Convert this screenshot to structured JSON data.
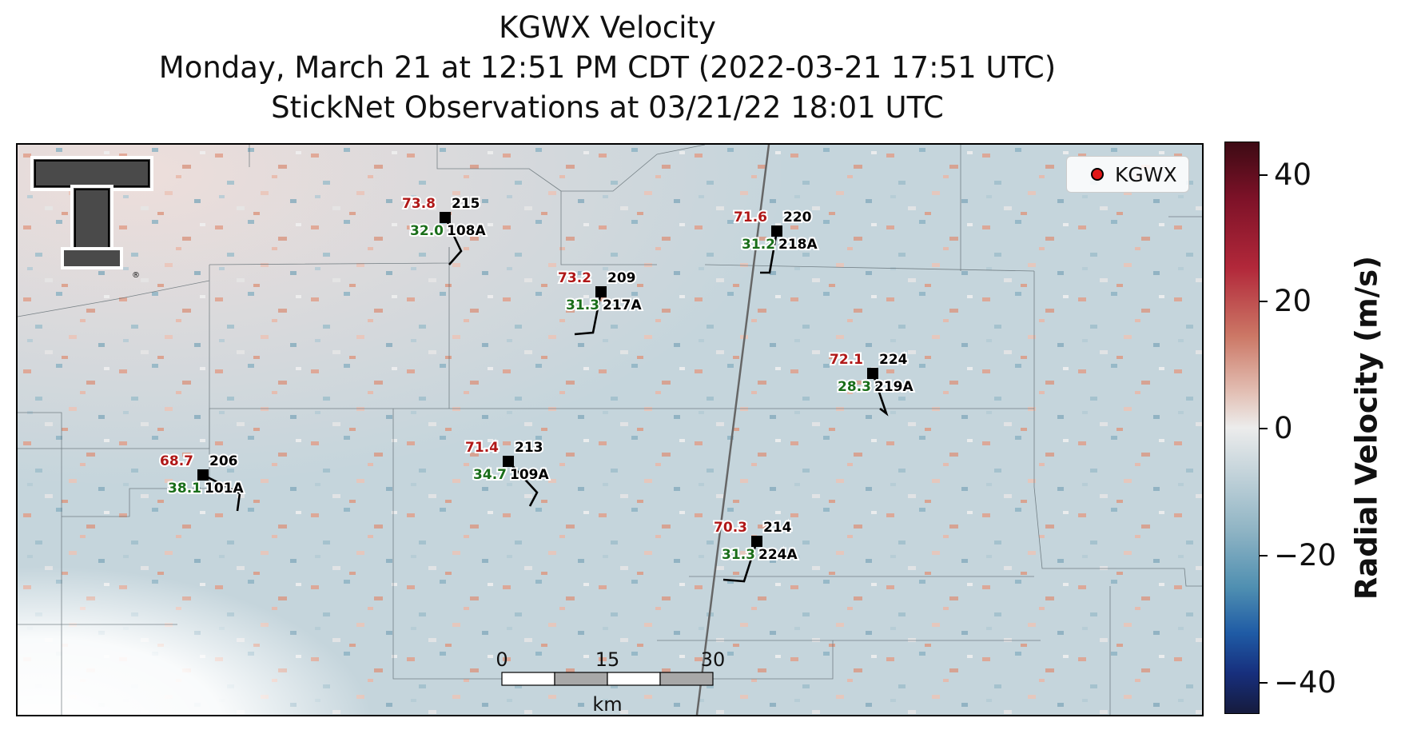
{
  "title": {
    "line1": "KGWX Velocity",
    "line2": "Monday, March 21 at 12:51 PM CDT (2022-03-21 17:51 UTC)",
    "line3": "StickNet Observations at 03/21/22 18:01 UTC"
  },
  "legend": {
    "label": "KGWX",
    "marker_color": "#e01818"
  },
  "colorbar": {
    "label": "Radial Velocity (m/s)",
    "ticks": [
      "40",
      "20",
      "0",
      "−20",
      "−40"
    ],
    "range": [
      -45,
      45
    ]
  },
  "scalebar": {
    "labels": [
      "0",
      "15",
      "30"
    ],
    "unit": "km"
  },
  "logo": {
    "name": "texas-tech-double-t-logo",
    "text": "T"
  },
  "stations": [
    {
      "id": "108A",
      "temp": "73.8",
      "dew": "32.0",
      "dir": "215"
    },
    {
      "id": "217A",
      "temp": "73.2",
      "dew": "31.3",
      "dir": "209"
    },
    {
      "id": "218A",
      "temp": "71.6",
      "dew": "31.2",
      "dir": "220"
    },
    {
      "id": "219A",
      "temp": "72.1",
      "dew": "28.3",
      "dir": "224"
    },
    {
      "id": "101A",
      "temp": "68.7",
      "dew": "38.1",
      "dir": "206"
    },
    {
      "id": "109A",
      "temp": "71.4",
      "dew": "34.7",
      "dir": "213"
    },
    {
      "id": "224A",
      "temp": "70.3",
      "dew": "31.3",
      "dir": "214"
    }
  ],
  "colors": {
    "background_velocity": "#c5d5dc",
    "inbound": "#8fb4c4",
    "outbound": "#e0a08c"
  }
}
